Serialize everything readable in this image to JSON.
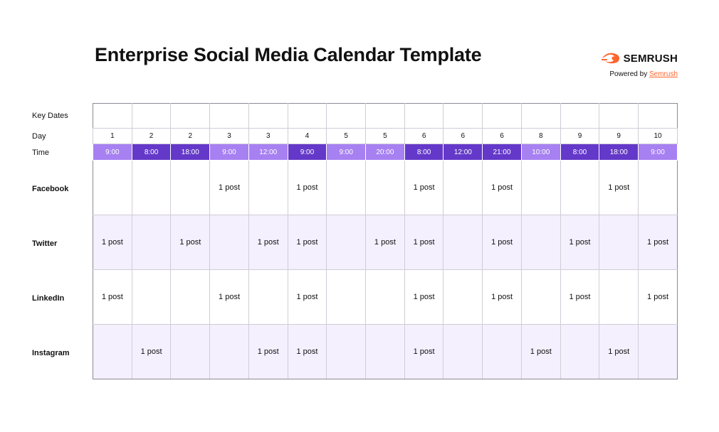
{
  "title": "Enterprise Social Media Calendar Template",
  "brand": {
    "name": "SEMRUSH",
    "logo_icon": "semrush-flame-logo-icon",
    "powered_prefix": "Powered by",
    "powered_link": "Semrush",
    "accent_color": "#ff642d"
  },
  "row_labels": {
    "key_dates": "Key Dates",
    "day": "Day",
    "time": "Time"
  },
  "colors": {
    "time_light": "#a780f2",
    "time_dark": "#6438c9",
    "shaded_row": "#f4f0fe"
  },
  "columns": [
    {
      "day": "1",
      "time": "9:00",
      "shade": "light"
    },
    {
      "day": "2",
      "time": "8:00",
      "shade": "dark"
    },
    {
      "day": "2",
      "time": "18:00",
      "shade": "dark"
    },
    {
      "day": "3",
      "time": "9:00",
      "shade": "light"
    },
    {
      "day": "3",
      "time": "12:00",
      "shade": "light"
    },
    {
      "day": "4",
      "time": "9:00",
      "shade": "dark"
    },
    {
      "day": "5",
      "time": "9:00",
      "shade": "light"
    },
    {
      "day": "5",
      "time": "20:00",
      "shade": "light"
    },
    {
      "day": "6",
      "time": "8:00",
      "shade": "dark"
    },
    {
      "day": "6",
      "time": "12:00",
      "shade": "dark"
    },
    {
      "day": "6",
      "time": "21:00",
      "shade": "dark"
    },
    {
      "day": "8",
      "time": "10:00",
      "shade": "light"
    },
    {
      "day": "9",
      "time": "8:00",
      "shade": "dark"
    },
    {
      "day": "9",
      "time": "18:00",
      "shade": "dark"
    },
    {
      "day": "10",
      "time": "9:00",
      "shade": "light"
    }
  ],
  "platforms": [
    {
      "name": "Facebook",
      "shaded": false,
      "cells": [
        "",
        "",
        "",
        "1 post",
        "",
        "1 post",
        "",
        "",
        "1 post",
        "",
        "1 post",
        "",
        "",
        "1 post",
        ""
      ]
    },
    {
      "name": "Twitter",
      "shaded": true,
      "cells": [
        "1 post",
        "",
        "1 post",
        "",
        "1 post",
        "1 post",
        "",
        "1 post",
        "1 post",
        "",
        "1 post",
        "",
        "1 post",
        "",
        "1 post"
      ]
    },
    {
      "name": "LinkedIn",
      "shaded": false,
      "cells": [
        "1 post",
        "",
        "",
        "1 post",
        "",
        "1 post",
        "",
        "",
        "1 post",
        "",
        "1 post",
        "",
        "1 post",
        "",
        "1 post"
      ]
    },
    {
      "name": "Instagram",
      "shaded": true,
      "cells": [
        "",
        "1 post",
        "",
        "",
        "1 post",
        "1 post",
        "",
        "",
        "1 post",
        "",
        "",
        "1 post",
        "",
        "1 post",
        ""
      ]
    }
  ]
}
